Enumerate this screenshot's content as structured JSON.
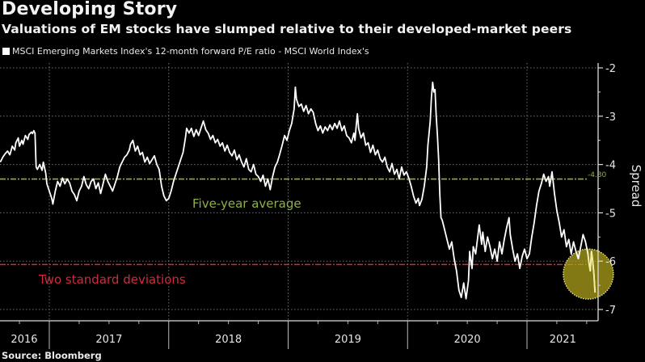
{
  "header": {
    "title": "Developing Story",
    "subtitle": "Valuations of EM stocks have slumped relative to their developed-market peers"
  },
  "legend": {
    "items": [
      {
        "label": "MSCI Emerging Markets Index's 12-month forward P/E ratio - MSCI World Index's",
        "color": "#ffffff"
      }
    ]
  },
  "footer": {
    "source": "Source: Bloomberg"
  },
  "chart_data": {
    "type": "line",
    "title": "Developing Story",
    "subtitle": "Valuations of EM stocks have slumped relative to their developed-market peers",
    "xlabel": "",
    "ylabel": "Spread",
    "ylim": [
      -7.15,
      -1.8
    ],
    "xlim": [
      2016.59,
      2021.6
    ],
    "yticks": [
      -2,
      -3,
      -4,
      -5,
      -6,
      -7
    ],
    "ytick_labels": [
      "-2",
      "-3",
      "-4",
      "-5",
      "-6",
      "-7"
    ],
    "xtick_labels": [
      {
        "label": "2016",
        "center": 2016.79
      },
      {
        "label": "2017",
        "center": 2017.5
      },
      {
        "label": "2018",
        "center": 2018.5
      },
      {
        "label": "2019",
        "center": 2019.5
      },
      {
        "label": "2020",
        "center": 2020.5
      },
      {
        "label": "2021",
        "center": 2021.3
      }
    ],
    "year_boundaries": [
      2017,
      2018,
      2019,
      2020,
      2021
    ],
    "grid": true,
    "legend_position": "top-left",
    "axis_side": "right",
    "colors": {
      "series": "#ffffff",
      "average": "#8db049",
      "stdev": "#d02b3c",
      "highlight": "#b5a81c",
      "grid": "#8a8a8a"
    },
    "reference_lines": [
      {
        "name": "Five-year average",
        "value": -4.3,
        "label": "Five-year average",
        "value_label": "-4.30",
        "color": "#8db049"
      },
      {
        "name": "Two standard deviations",
        "value": -6.07,
        "label": "Two standard deviations",
        "value_label": "-6.07",
        "color": "#d02b3c"
      }
    ],
    "highlight": {
      "x": 2021.5,
      "y": -6.3,
      "description": "Latest readings circled"
    },
    "series": [
      {
        "name": "MSCI Emerging Markets Index's 12-month forward P/E ratio - MSCI World Index's",
        "points": [
          [
            2016.59,
            -3.95
          ],
          [
            2016.61,
            -3.85
          ],
          [
            2016.63,
            -3.78
          ],
          [
            2016.65,
            -3.72
          ],
          [
            2016.67,
            -3.8
          ],
          [
            2016.69,
            -3.62
          ],
          [
            2016.71,
            -3.7
          ],
          [
            2016.72,
            -3.55
          ],
          [
            2016.74,
            -3.45
          ],
          [
            2016.75,
            -3.62
          ],
          [
            2016.77,
            -3.5
          ],
          [
            2016.78,
            -3.58
          ],
          [
            2016.8,
            -3.4
          ],
          [
            2016.82,
            -3.48
          ],
          [
            2016.83,
            -3.38
          ],
          [
            2016.85,
            -3.33
          ],
          [
            2016.86,
            -3.36
          ],
          [
            2016.87,
            -3.3
          ],
          [
            2016.88,
            -3.35
          ],
          [
            2016.89,
            -4.05
          ],
          [
            2016.9,
            -4.1
          ],
          [
            2016.92,
            -4.0
          ],
          [
            2016.94,
            -4.12
          ],
          [
            2016.95,
            -3.95
          ],
          [
            2016.97,
            -4.18
          ],
          [
            2016.98,
            -4.4
          ],
          [
            2017.0,
            -4.55
          ],
          [
            2017.02,
            -4.7
          ],
          [
            2017.03,
            -4.82
          ],
          [
            2017.05,
            -4.55
          ],
          [
            2017.07,
            -4.35
          ],
          [
            2017.09,
            -4.45
          ],
          [
            2017.11,
            -4.28
          ],
          [
            2017.13,
            -4.4
          ],
          [
            2017.15,
            -4.3
          ],
          [
            2017.17,
            -4.38
          ],
          [
            2017.19,
            -4.55
          ],
          [
            2017.21,
            -4.62
          ],
          [
            2017.23,
            -4.75
          ],
          [
            2017.25,
            -4.55
          ],
          [
            2017.27,
            -4.45
          ],
          [
            2017.29,
            -4.25
          ],
          [
            2017.31,
            -4.42
          ],
          [
            2017.33,
            -4.5
          ],
          [
            2017.35,
            -4.35
          ],
          [
            2017.37,
            -4.3
          ],
          [
            2017.39,
            -4.5
          ],
          [
            2017.41,
            -4.38
          ],
          [
            2017.43,
            -4.6
          ],
          [
            2017.45,
            -4.4
          ],
          [
            2017.47,
            -4.2
          ],
          [
            2017.49,
            -4.35
          ],
          [
            2017.51,
            -4.45
          ],
          [
            2017.53,
            -4.55
          ],
          [
            2017.55,
            -4.4
          ],
          [
            2017.57,
            -4.25
          ],
          [
            2017.59,
            -4.05
          ],
          [
            2017.61,
            -3.95
          ],
          [
            2017.63,
            -3.85
          ],
          [
            2017.65,
            -3.8
          ],
          [
            2017.67,
            -3.7
          ],
          [
            2017.68,
            -3.58
          ],
          [
            2017.7,
            -3.5
          ],
          [
            2017.72,
            -3.72
          ],
          [
            2017.74,
            -3.62
          ],
          [
            2017.76,
            -3.8
          ],
          [
            2017.78,
            -3.75
          ],
          [
            2017.8,
            -3.95
          ],
          [
            2017.82,
            -3.85
          ],
          [
            2017.84,
            -3.98
          ],
          [
            2017.86,
            -3.9
          ],
          [
            2017.88,
            -3.82
          ],
          [
            2017.9,
            -4.0
          ],
          [
            2017.92,
            -4.1
          ],
          [
            2017.94,
            -4.45
          ],
          [
            2017.96,
            -4.65
          ],
          [
            2017.98,
            -4.75
          ],
          [
            2018.0,
            -4.7
          ],
          [
            2018.02,
            -4.55
          ],
          [
            2018.04,
            -4.35
          ],
          [
            2018.06,
            -4.2
          ],
          [
            2018.08,
            -4.05
          ],
          [
            2018.1,
            -3.9
          ],
          [
            2018.12,
            -3.75
          ],
          [
            2018.14,
            -3.45
          ],
          [
            2018.15,
            -3.25
          ],
          [
            2018.17,
            -3.35
          ],
          [
            2018.19,
            -3.25
          ],
          [
            2018.21,
            -3.42
          ],
          [
            2018.23,
            -3.28
          ],
          [
            2018.25,
            -3.4
          ],
          [
            2018.27,
            -3.25
          ],
          [
            2018.29,
            -3.1
          ],
          [
            2018.31,
            -3.28
          ],
          [
            2018.33,
            -3.35
          ],
          [
            2018.35,
            -3.48
          ],
          [
            2018.37,
            -3.4
          ],
          [
            2018.39,
            -3.55
          ],
          [
            2018.41,
            -3.48
          ],
          [
            2018.43,
            -3.62
          ],
          [
            2018.45,
            -3.55
          ],
          [
            2018.47,
            -3.72
          ],
          [
            2018.49,
            -3.6
          ],
          [
            2018.51,
            -3.75
          ],
          [
            2018.53,
            -3.82
          ],
          [
            2018.55,
            -3.7
          ],
          [
            2018.57,
            -3.9
          ],
          [
            2018.59,
            -3.8
          ],
          [
            2018.61,
            -3.95
          ],
          [
            2018.63,
            -4.05
          ],
          [
            2018.65,
            -3.88
          ],
          [
            2018.67,
            -4.1
          ],
          [
            2018.69,
            -4.15
          ],
          [
            2018.71,
            -4.0
          ],
          [
            2018.73,
            -4.2
          ],
          [
            2018.75,
            -4.25
          ],
          [
            2018.77,
            -4.35
          ],
          [
            2018.79,
            -4.22
          ],
          [
            2018.81,
            -4.45
          ],
          [
            2018.83,
            -4.3
          ],
          [
            2018.85,
            -4.52
          ],
          [
            2018.87,
            -4.25
          ],
          [
            2018.89,
            -4.05
          ],
          [
            2018.91,
            -3.95
          ],
          [
            2018.93,
            -3.78
          ],
          [
            2018.95,
            -3.6
          ],
          [
            2018.97,
            -3.4
          ],
          [
            2018.99,
            -3.5
          ],
          [
            2019.01,
            -3.3
          ],
          [
            2019.03,
            -3.15
          ],
          [
            2019.05,
            -2.85
          ],
          [
            2019.06,
            -2.4
          ],
          [
            2019.07,
            -2.65
          ],
          [
            2019.09,
            -2.8
          ],
          [
            2019.11,
            -2.75
          ],
          [
            2019.13,
            -2.9
          ],
          [
            2019.15,
            -2.78
          ],
          [
            2019.17,
            -2.95
          ],
          [
            2019.19,
            -2.85
          ],
          [
            2019.21,
            -2.92
          ],
          [
            2019.23,
            -3.15
          ],
          [
            2019.25,
            -3.3
          ],
          [
            2019.27,
            -3.2
          ],
          [
            2019.29,
            -3.35
          ],
          [
            2019.31,
            -3.22
          ],
          [
            2019.33,
            -3.3
          ],
          [
            2019.35,
            -3.18
          ],
          [
            2019.37,
            -3.28
          ],
          [
            2019.39,
            -3.15
          ],
          [
            2019.41,
            -3.25
          ],
          [
            2019.43,
            -3.1
          ],
          [
            2019.45,
            -3.3
          ],
          [
            2019.47,
            -3.2
          ],
          [
            2019.49,
            -3.4
          ],
          [
            2019.51,
            -3.45
          ],
          [
            2019.53,
            -3.55
          ],
          [
            2019.55,
            -3.35
          ],
          [
            2019.56,
            -3.5
          ],
          [
            2019.57,
            -3.2
          ],
          [
            2019.58,
            -2.95
          ],
          [
            2019.59,
            -3.25
          ],
          [
            2019.61,
            -3.45
          ],
          [
            2019.63,
            -3.35
          ],
          [
            2019.65,
            -3.6
          ],
          [
            2019.67,
            -3.55
          ],
          [
            2019.69,
            -3.75
          ],
          [
            2019.71,
            -3.6
          ],
          [
            2019.73,
            -3.8
          ],
          [
            2019.75,
            -3.7
          ],
          [
            2019.77,
            -3.88
          ],
          [
            2019.79,
            -3.95
          ],
          [
            2019.81,
            -3.85
          ],
          [
            2019.83,
            -4.05
          ],
          [
            2019.85,
            -4.15
          ],
          [
            2019.87,
            -3.98
          ],
          [
            2019.89,
            -4.2
          ],
          [
            2019.91,
            -4.1
          ],
          [
            2019.93,
            -4.3
          ],
          [
            2019.95,
            -4.05
          ],
          [
            2019.97,
            -4.22
          ],
          [
            2019.99,
            -4.15
          ],
          [
            2020.01,
            -4.28
          ],
          [
            2020.03,
            -4.45
          ],
          [
            2020.05,
            -4.65
          ],
          [
            2020.07,
            -4.8
          ],
          [
            2020.09,
            -4.7
          ],
          [
            2020.1,
            -4.85
          ],
          [
            2020.12,
            -4.72
          ],
          [
            2020.14,
            -4.45
          ],
          [
            2020.16,
            -4.05
          ],
          [
            2020.17,
            -3.6
          ],
          [
            2020.19,
            -3.1
          ],
          [
            2020.2,
            -2.6
          ],
          [
            2020.21,
            -2.3
          ],
          [
            2020.22,
            -2.5
          ],
          [
            2020.23,
            -2.45
          ],
          [
            2020.24,
            -3.0
          ],
          [
            2020.25,
            -3.4
          ],
          [
            2020.26,
            -3.9
          ],
          [
            2020.27,
            -4.6
          ],
          [
            2020.28,
            -5.1
          ],
          [
            2020.29,
            -5.15
          ],
          [
            2020.31,
            -5.35
          ],
          [
            2020.33,
            -5.55
          ],
          [
            2020.35,
            -5.75
          ],
          [
            2020.37,
            -5.6
          ],
          [
            2020.39,
            -5.95
          ],
          [
            2020.41,
            -6.2
          ],
          [
            2020.43,
            -6.6
          ],
          [
            2020.45,
            -6.75
          ],
          [
            2020.47,
            -6.45
          ],
          [
            2020.49,
            -6.78
          ],
          [
            2020.51,
            -6.4
          ],
          [
            2020.52,
            -5.8
          ],
          [
            2020.54,
            -6.15
          ],
          [
            2020.55,
            -5.7
          ],
          [
            2020.57,
            -5.85
          ],
          [
            2020.59,
            -5.45
          ],
          [
            2020.6,
            -5.25
          ],
          [
            2020.62,
            -5.65
          ],
          [
            2020.63,
            -5.4
          ],
          [
            2020.65,
            -5.8
          ],
          [
            2020.67,
            -5.5
          ],
          [
            2020.69,
            -5.7
          ],
          [
            2020.71,
            -5.95
          ],
          [
            2020.73,
            -5.75
          ],
          [
            2020.75,
            -6.0
          ],
          [
            2020.77,
            -5.6
          ],
          [
            2020.79,
            -5.85
          ],
          [
            2020.81,
            -5.55
          ],
          [
            2020.83,
            -5.3
          ],
          [
            2020.85,
            -5.1
          ],
          [
            2020.86,
            -5.45
          ],
          [
            2020.88,
            -5.75
          ],
          [
            2020.9,
            -6.0
          ],
          [
            2020.92,
            -5.85
          ],
          [
            2020.94,
            -6.15
          ],
          [
            2020.96,
            -5.9
          ],
          [
            2020.98,
            -5.75
          ],
          [
            2021.0,
            -5.95
          ],
          [
            2021.02,
            -5.85
          ],
          [
            2021.04,
            -5.5
          ],
          [
            2021.06,
            -5.2
          ],
          [
            2021.08,
            -4.85
          ],
          [
            2021.1,
            -4.55
          ],
          [
            2021.12,
            -4.4
          ],
          [
            2021.14,
            -4.2
          ],
          [
            2021.16,
            -4.35
          ],
          [
            2021.18,
            -4.25
          ],
          [
            2021.19,
            -4.45
          ],
          [
            2021.21,
            -4.15
          ],
          [
            2021.23,
            -4.6
          ],
          [
            2021.25,
            -4.95
          ],
          [
            2021.27,
            -5.2
          ],
          [
            2021.29,
            -5.5
          ],
          [
            2021.31,
            -5.35
          ],
          [
            2021.33,
            -5.7
          ],
          [
            2021.35,
            -5.55
          ],
          [
            2021.37,
            -5.85
          ],
          [
            2021.39,
            -5.6
          ],
          [
            2021.41,
            -5.8
          ],
          [
            2021.43,
            -5.95
          ],
          [
            2021.45,
            -5.7
          ],
          [
            2021.47,
            -5.45
          ],
          [
            2021.49,
            -5.6
          ],
          [
            2021.51,
            -5.85
          ],
          [
            2021.52,
            -6.05
          ],
          [
            2021.53,
            -6.2
          ],
          [
            2021.54,
            -5.8
          ],
          [
            2021.55,
            -6.0
          ],
          [
            2021.56,
            -6.25
          ],
          [
            2021.57,
            -6.65
          ]
        ]
      }
    ]
  }
}
